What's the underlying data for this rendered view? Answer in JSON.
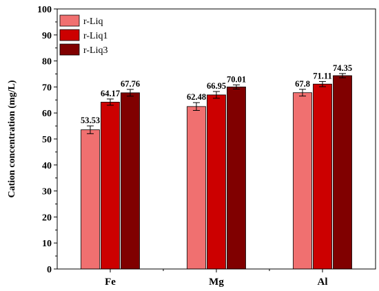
{
  "chart_data": {
    "type": "bar",
    "categories": [
      "Fe",
      "Mg",
      "Al"
    ],
    "series": [
      {
        "name": "r-Liq",
        "color": "#f07070",
        "values": [
          53.53,
          62.48,
          67.8
        ],
        "errors": [
          1.5,
          1.5,
          1.3
        ],
        "labels": [
          "53.53",
          "62.48",
          "67.8"
        ]
      },
      {
        "name": "r-Liq1",
        "color": "#cc0000",
        "values": [
          64.17,
          66.95,
          71.11
        ],
        "errors": [
          1.2,
          1.3,
          1.0
        ],
        "labels": [
          "64.17",
          "66.95",
          "71.11"
        ]
      },
      {
        "name": "r-Liq3",
        "color": "#800000",
        "values": [
          67.76,
          70.01,
          74.35
        ],
        "errors": [
          1.3,
          0.8,
          0.8
        ],
        "labels": [
          "67.76",
          "70.01",
          "74.35"
        ]
      }
    ],
    "ylabel": "Cation concentration (mg/L)",
    "xlabel": "",
    "ylim": [
      0,
      100
    ],
    "yticks": [
      0,
      10,
      20,
      30,
      40,
      50,
      60,
      70,
      80,
      90,
      100
    ],
    "grid": false,
    "legend": "top-left"
  }
}
